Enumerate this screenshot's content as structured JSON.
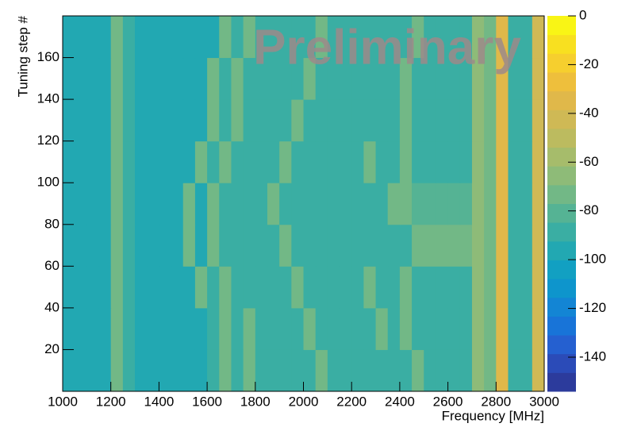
{
  "chart_data": {
    "type": "heatmap",
    "annotation": "Preliminary",
    "x_label": "Frequency [MHz]",
    "y_label": "Tuning step #",
    "x_bins": [
      1000,
      1050,
      1100,
      1150,
      1200,
      1250,
      1300,
      1350,
      1400,
      1450,
      1500,
      1550,
      1600,
      1650,
      1700,
      1750,
      1800,
      1850,
      1900,
      1950,
      2000,
      2050,
      2100,
      2150,
      2200,
      2250,
      2300,
      2350,
      2400,
      2450,
      2500,
      2550,
      2600,
      2650,
      2700,
      2750,
      2800,
      2850,
      2900,
      2950,
      3000
    ],
    "y_bins": [
      0,
      20,
      40,
      60,
      80,
      100,
      120,
      140,
      160,
      180
    ],
    "z": [
      [
        -96,
        -96,
        -96,
        -96,
        -75,
        -88,
        -97,
        -97,
        -97,
        -97,
        -97,
        -97,
        -86,
        -70,
        -86,
        -70,
        -86,
        -86,
        -86,
        -86,
        -86,
        -70,
        -86,
        -86,
        -86,
        -86,
        -86,
        -90,
        -90,
        -70,
        -90,
        -90,
        -90,
        -90,
        -62,
        -70,
        -35,
        -88,
        -88,
        -45
      ],
      [
        -96,
        -96,
        -96,
        -96,
        -75,
        -88,
        -97,
        -97,
        -97,
        -97,
        -97,
        -97,
        -86,
        -70,
        -86,
        -70,
        -86,
        -86,
        -86,
        -86,
        -70,
        -86,
        -86,
        -86,
        -86,
        -86,
        -70,
        -90,
        -70,
        -90,
        -90,
        -90,
        -90,
        -90,
        -62,
        -70,
        -35,
        -88,
        -88,
        -45
      ],
      [
        -96,
        -96,
        -96,
        -96,
        -75,
        -88,
        -97,
        -97,
        -97,
        -97,
        -97,
        -70,
        -86,
        -70,
        -86,
        -86,
        -86,
        -86,
        -86,
        -70,
        -86,
        -86,
        -86,
        -86,
        -86,
        -70,
        -86,
        -90,
        -70,
        -90,
        -90,
        -90,
        -90,
        -90,
        -62,
        -70,
        -35,
        -88,
        -88,
        -45
      ],
      [
        -96,
        -96,
        -96,
        -96,
        -75,
        -88,
        -97,
        -97,
        -97,
        -97,
        -70,
        -97,
        -70,
        -86,
        -86,
        -86,
        -86,
        -86,
        -70,
        -86,
        -86,
        -86,
        -86,
        -86,
        -86,
        -86,
        -86,
        -90,
        -90,
        -75,
        -75,
        -75,
        -75,
        -75,
        -62,
        -70,
        -35,
        -88,
        -88,
        -45
      ],
      [
        -96,
        -96,
        -96,
        -96,
        -75,
        -88,
        -97,
        -97,
        -97,
        -97,
        -70,
        -97,
        -70,
        -86,
        -86,
        -86,
        -86,
        -70,
        -86,
        -86,
        -86,
        -86,
        -86,
        -86,
        -86,
        -86,
        -86,
        -70,
        -70,
        -78,
        -78,
        -78,
        -78,
        -78,
        -62,
        -70,
        -35,
        -88,
        -88,
        -45
      ],
      [
        -96,
        -96,
        -96,
        -96,
        -75,
        -88,
        -97,
        -97,
        -97,
        -97,
        -97,
        -70,
        -86,
        -70,
        -86,
        -86,
        -86,
        -86,
        -70,
        -86,
        -86,
        -86,
        -86,
        -86,
        -86,
        -70,
        -86,
        -90,
        -70,
        -90,
        -90,
        -90,
        -90,
        -90,
        -62,
        -70,
        -35,
        -88,
        -88,
        -45
      ],
      [
        -96,
        -96,
        -96,
        -96,
        -75,
        -92,
        -100,
        -100,
        -100,
        -100,
        -100,
        -100,
        -70,
        -88,
        -70,
        -88,
        -88,
        -88,
        -88,
        -70,
        -88,
        -88,
        -88,
        -88,
        -88,
        -88,
        -88,
        -90,
        -70,
        -90,
        -90,
        -90,
        -90,
        -90,
        -65,
        -72,
        -35,
        -88,
        -88,
        -45
      ],
      [
        -96,
        -96,
        -96,
        -96,
        -75,
        -92,
        -100,
        -100,
        -100,
        -100,
        -100,
        -100,
        -70,
        -88,
        -70,
        -88,
        -88,
        -88,
        -88,
        -88,
        -70,
        -88,
        -88,
        -88,
        -88,
        -88,
        -88,
        -90,
        -70,
        -90,
        -90,
        -90,
        -90,
        -90,
        -65,
        -72,
        -35,
        -88,
        -88,
        -45
      ],
      [
        -96,
        -96,
        -96,
        -96,
        -75,
        -92,
        -100,
        -100,
        -100,
        -100,
        -100,
        -100,
        -100,
        -70,
        -88,
        -70,
        -88,
        -88,
        -88,
        -88,
        -88,
        -70,
        -88,
        -88,
        -88,
        -88,
        -88,
        -90,
        -90,
        -70,
        -90,
        -90,
        -90,
        -90,
        -65,
        -72,
        -35,
        -88,
        -88,
        -45
      ]
    ],
    "xlim": [
      1000,
      3000
    ],
    "xticks": [
      1000,
      1200,
      1400,
      1600,
      1800,
      2000,
      2200,
      2400,
      2600,
      2800,
      3000
    ],
    "ylim": [
      0,
      180
    ],
    "yticks": [
      20,
      40,
      60,
      80,
      100,
      120,
      140,
      160
    ],
    "zlim": [
      -154,
      0
    ],
    "zticks": [
      0,
      -20,
      -40,
      -60,
      -80,
      -100,
      -120,
      -140
    ],
    "colors": [
      "#2c3b9c",
      "#2b4bb8",
      "#2560d0",
      "#1874d8",
      "#1385d4",
      "#0e95cc",
      "#12a0c2",
      "#22a8b2",
      "#3aaea3",
      "#55b394",
      "#72b886",
      "#8ebb78",
      "#a6bc6b",
      "#bcbb5f",
      "#cfb955",
      "#e0b84a",
      "#eebf3c",
      "#f6cf2e",
      "#f8e020",
      "#f9f515"
    ]
  }
}
